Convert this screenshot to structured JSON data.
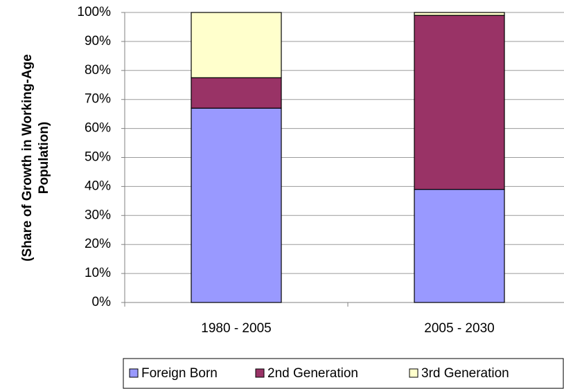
{
  "chart_data": {
    "type": "stacked_bar",
    "ylabel": [
      "(Share of Growth in Working-Age",
      "Population)"
    ],
    "categories": [
      "1980 - 2005",
      "2005 - 2030"
    ],
    "series": [
      {
        "name": "Foreign Born",
        "color": "#9999ff",
        "values": [
          67,
          39
        ]
      },
      {
        "name": "2nd Generation",
        "color": "#993366",
        "values": [
          10.5,
          60
        ]
      },
      {
        "name": "3rd Generation",
        "color": "#ffffcc",
        "values": [
          22.5,
          1
        ]
      }
    ],
    "ylim": [
      0,
      100
    ],
    "yticks": [
      {
        "value": 0,
        "label": "0%"
      },
      {
        "value": 10,
        "label": "10%"
      },
      {
        "value": 20,
        "label": "20%"
      },
      {
        "value": 30,
        "label": "30%"
      },
      {
        "value": 40,
        "label": "40%"
      },
      {
        "value": 50,
        "label": "50%"
      },
      {
        "value": 60,
        "label": "60%"
      },
      {
        "value": 70,
        "label": "70%"
      },
      {
        "value": 80,
        "label": "80%"
      },
      {
        "value": 90,
        "label": "90%"
      },
      {
        "value": 100,
        "label": "100%"
      }
    ],
    "grid": true,
    "legend": "bottom"
  }
}
